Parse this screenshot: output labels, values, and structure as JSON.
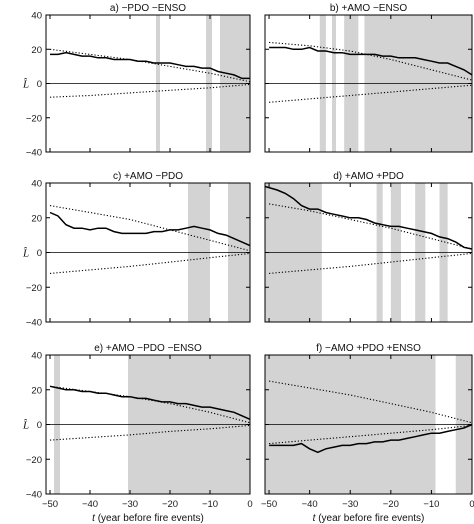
{
  "chart_data": [
    {
      "type": "line",
      "title": "a) −PDO −ENSO",
      "ylabel": "L^",
      "xlim": [
        -51,
        0
      ],
      "ylim": [
        -40,
        40
      ],
      "yticks": [
        "-40",
        "-20",
        "0",
        "20",
        "40"
      ],
      "shaded_intervals": [
        [
          -23.5,
          -22.5
        ],
        [
          -11,
          -9.5
        ],
        [
          -7.5,
          0
        ]
      ],
      "series": [
        {
          "style": "solid",
          "x": [
            -50,
            -48,
            -46,
            -44,
            -42,
            -40,
            -38,
            -36,
            -34,
            -32,
            -30,
            -28,
            -26,
            -24,
            -22,
            -20,
            -18,
            -16,
            -14,
            -12,
            -10,
            -8,
            -6,
            -4,
            -2,
            0
          ],
          "values": [
            17,
            17,
            18,
            17,
            16,
            16,
            15,
            15,
            14,
            14,
            14,
            13,
            13,
            12,
            12,
            12,
            11,
            10,
            10,
            9,
            9,
            7,
            6,
            5,
            3,
            3
          ]
        },
        {
          "style": "dotted",
          "x": [
            -50,
            -40,
            -30,
            -20,
            -10,
            0
          ],
          "values": [
            20,
            17,
            14,
            10,
            6,
            1
          ]
        },
        {
          "style": "dotted",
          "x": [
            -50,
            -40,
            -30,
            -20,
            -10,
            0
          ],
          "values": [
            -8,
            -7,
            -5.5,
            -4,
            -2.5,
            -0.5
          ]
        }
      ]
    },
    {
      "type": "line",
      "title": "b) +AMO −ENSO",
      "ylabel": "",
      "xlim": [
        -51,
        0
      ],
      "ylim": [
        -40,
        40
      ],
      "yticks": [],
      "shaded_intervals": [
        [
          -37.5,
          -36
        ],
        [
          -34.5,
          -33.5
        ],
        [
          -31.5,
          -28
        ],
        [
          -26.5,
          0
        ]
      ],
      "series": [
        {
          "style": "solid",
          "x": [
            -50,
            -48,
            -46,
            -44,
            -42,
            -40,
            -38,
            -36,
            -34,
            -32,
            -30,
            -28,
            -26,
            -24,
            -22,
            -20,
            -18,
            -16,
            -14,
            -12,
            -10,
            -8,
            -6,
            -4,
            -2,
            0
          ],
          "values": [
            21,
            21,
            21,
            20,
            20,
            21,
            19,
            19,
            18,
            18,
            17,
            17,
            17,
            17,
            16,
            16,
            15,
            15,
            15,
            14,
            13,
            12,
            12,
            10,
            8,
            5
          ]
        },
        {
          "style": "dotted",
          "x": [
            -50,
            -40,
            -30,
            -20,
            -10,
            0
          ],
          "values": [
            24,
            22,
            19,
            14,
            8,
            2
          ]
        },
        {
          "style": "dotted",
          "x": [
            -50,
            -40,
            -30,
            -20,
            -10,
            0
          ],
          "values": [
            -11,
            -9,
            -7,
            -5,
            -3,
            -1
          ]
        }
      ]
    },
    {
      "type": "line",
      "title": "c) +AMO −PDO",
      "ylabel": "L^",
      "xlim": [
        -51,
        0
      ],
      "ylim": [
        -40,
        40
      ],
      "yticks": [
        "-40",
        "-20",
        "0",
        "20",
        "40"
      ],
      "shaded_intervals": [
        [
          -15.5,
          -10
        ],
        [
          -5.5,
          0
        ]
      ],
      "series": [
        {
          "style": "solid",
          "x": [
            -50,
            -48,
            -46,
            -44,
            -42,
            -40,
            -38,
            -36,
            -34,
            -32,
            -30,
            -28,
            -26,
            -24,
            -22,
            -20,
            -18,
            -16,
            -14,
            -12,
            -10,
            -8,
            -6,
            -4,
            -2,
            0
          ],
          "values": [
            23,
            21,
            16,
            14,
            14,
            13,
            14,
            14,
            12,
            11,
            11,
            11,
            11,
            12,
            12,
            13,
            13,
            14,
            15,
            14,
            13,
            11,
            10,
            8,
            6,
            4
          ]
        },
        {
          "style": "dotted",
          "x": [
            -50,
            -40,
            -30,
            -20,
            -10,
            0
          ],
          "values": [
            27,
            23,
            19,
            13,
            7,
            1
          ]
        },
        {
          "style": "dotted",
          "x": [
            -50,
            -40,
            -30,
            -20,
            -10,
            0
          ],
          "values": [
            -12,
            -10,
            -8,
            -5.5,
            -3,
            -0.5
          ]
        }
      ]
    },
    {
      "type": "line",
      "title": "d) +AMO +PDO",
      "ylabel": "",
      "xlim": [
        -51,
        0
      ],
      "ylim": [
        -40,
        40
      ],
      "yticks": [],
      "shaded_intervals": [
        [
          -51,
          -37
        ],
        [
          -23.5,
          -22
        ],
        [
          -20,
          -17.5
        ],
        [
          -14,
          -11.5
        ],
        [
          -8,
          -6
        ]
      ],
      "series": [
        {
          "style": "solid",
          "x": [
            -51,
            -48,
            -46,
            -44,
            -42,
            -40,
            -38,
            -36,
            -34,
            -32,
            -30,
            -28,
            -26,
            -24,
            -22,
            -20,
            -18,
            -16,
            -14,
            -12,
            -10,
            -8,
            -6,
            -4,
            -2,
            0
          ],
          "values": [
            38,
            36,
            34,
            31,
            27,
            25,
            25,
            23,
            22,
            21,
            20,
            20,
            19,
            17,
            16,
            15,
            15,
            14,
            13,
            12,
            11,
            9,
            8,
            6,
            3,
            2
          ]
        },
        {
          "style": "dotted",
          "x": [
            -50,
            -40,
            -30,
            -20,
            -10,
            0
          ],
          "values": [
            28,
            24,
            19,
            14,
            8,
            2
          ]
        },
        {
          "style": "dotted",
          "x": [
            -50,
            -40,
            -30,
            -20,
            -10,
            0
          ],
          "values": [
            -12,
            -10,
            -8,
            -5.5,
            -3,
            -0.5
          ]
        }
      ]
    },
    {
      "type": "line",
      "title": "e) +AMO −PDO −ENSO",
      "ylabel": "L^",
      "xlim": [
        -51,
        0
      ],
      "ylim": [
        -40,
        40
      ],
      "yticks": [
        "-40",
        "-20",
        "0",
        "20",
        "40"
      ],
      "xticks": [
        "-50",
        "-40",
        "-30",
        "-20",
        "-10",
        "0"
      ],
      "xlabel": "t (year before fire events)",
      "shaded_intervals": [
        [
          -49,
          -47.5
        ],
        [
          -30.5,
          0
        ]
      ],
      "series": [
        {
          "style": "solid",
          "x": [
            -50,
            -48,
            -46,
            -44,
            -42,
            -40,
            -38,
            -36,
            -34,
            -32,
            -30,
            -28,
            -26,
            -24,
            -22,
            -20,
            -18,
            -16,
            -14,
            -12,
            -10,
            -8,
            -6,
            -4,
            -2,
            0
          ],
          "values": [
            22,
            21,
            20,
            20,
            19,
            19,
            18,
            18,
            17,
            16,
            16,
            15,
            15,
            14,
            13,
            13,
            12,
            12,
            11,
            10,
            10,
            9,
            8,
            7,
            5,
            3
          ]
        },
        {
          "style": "dotted",
          "x": [
            -50,
            -40,
            -30,
            -20,
            -10,
            0
          ],
          "values": [
            22,
            19,
            16,
            12,
            7,
            1
          ]
        },
        {
          "style": "dotted",
          "x": [
            -50,
            -40,
            -30,
            -20,
            -10,
            0
          ],
          "values": [
            -9,
            -7.5,
            -6,
            -4,
            -2.5,
            -0.5
          ]
        }
      ]
    },
    {
      "type": "line",
      "title": "f) −AMO +PDO +ENSO",
      "ylabel": "",
      "xlim": [
        -51,
        0
      ],
      "ylim": [
        -40,
        40
      ],
      "yticks": [],
      "xticks": [
        "-50",
        "-40",
        "-30",
        "-20",
        "-10",
        "0"
      ],
      "xlabel": "t (year before fire events)",
      "shaded_intervals": [
        [
          -51,
          -9
        ],
        [
          -4,
          0
        ]
      ],
      "series": [
        {
          "style": "solid",
          "x": [
            -50,
            -48,
            -46,
            -44,
            -42,
            -40,
            -38,
            -36,
            -34,
            -32,
            -30,
            -28,
            -26,
            -24,
            -22,
            -20,
            -18,
            -16,
            -14,
            -12,
            -10,
            -8,
            -6,
            -4,
            -2,
            0
          ],
          "values": [
            -12,
            -12,
            -12,
            -12,
            -11,
            -14,
            -16,
            -14,
            -13,
            -12,
            -12,
            -11,
            -11,
            -10,
            -10,
            -9,
            -9,
            -8,
            -7,
            -6,
            -5,
            -5,
            -4,
            -3,
            -2,
            0
          ]
        },
        {
          "style": "dotted",
          "x": [
            -50,
            -40,
            -30,
            -20,
            -10,
            0
          ],
          "values": [
            25,
            21,
            17,
            12,
            7,
            1
          ]
        },
        {
          "style": "dotted",
          "x": [
            -50,
            -40,
            -30,
            -20,
            -10,
            0
          ],
          "values": [
            -11,
            -9,
            -7,
            -5,
            -3,
            -0.5
          ]
        }
      ]
    }
  ],
  "colors": {
    "shade": "#d3d3d3",
    "line": "#000000",
    "frame": "#000000"
  }
}
